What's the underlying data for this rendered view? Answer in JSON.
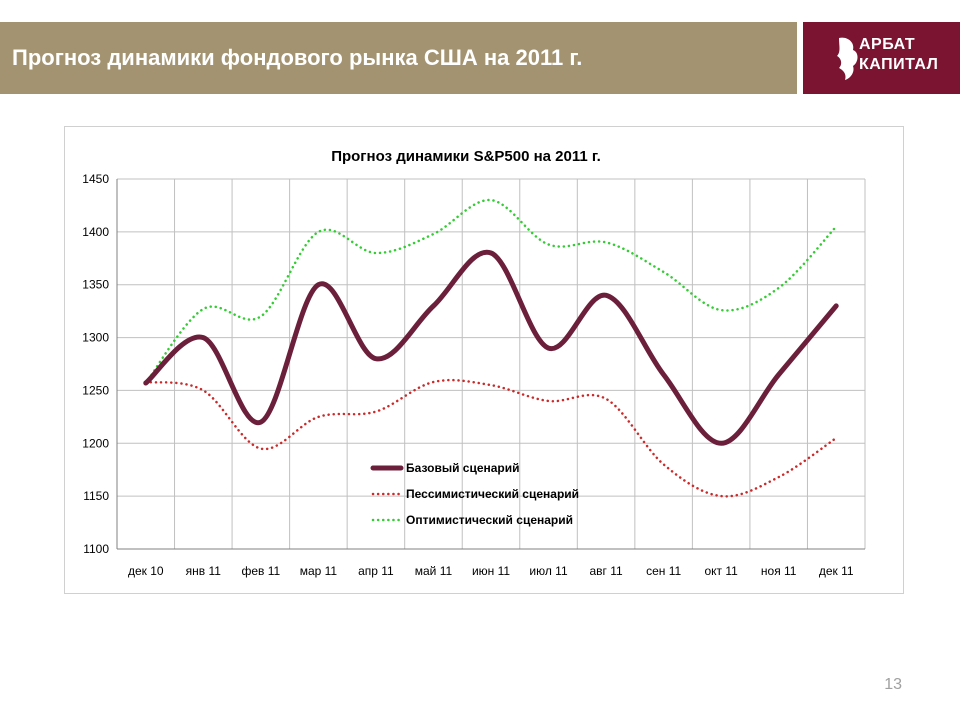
{
  "header": {
    "title": "Прогноз динамики фондового рынка США на 2011 г.",
    "background_color": "#a39370"
  },
  "logo": {
    "line1": "АРБАТ",
    "line2": "КАПИТАЛ",
    "background_color": "#7a1430",
    "icon": "lion-emblem-icon"
  },
  "chart_data": {
    "type": "line",
    "title": "Прогноз динамики S&P500 на 2011 г.",
    "xlabel": "",
    "ylabel": "",
    "categories": [
      "дек 10",
      "янв 11",
      "фев 11",
      "мар 11",
      "апр 11",
      "май 11",
      "июн 11",
      "июл 11",
      "авг 11",
      "сен 11",
      "окт 11",
      "ноя 11",
      "дек 11"
    ],
    "ylim": [
      1100,
      1450
    ],
    "yticks": [
      1100,
      1150,
      1200,
      1250,
      1300,
      1350,
      1400,
      1450
    ],
    "grid": true,
    "legend_position": "bottom-center",
    "series": [
      {
        "name": "Базовый сценарий",
        "color": "#6b1f3a",
        "style": "solid",
        "values": [
          1257,
          1300,
          1220,
          1350,
          1280,
          1330,
          1380,
          1290,
          1340,
          1265,
          1200,
          1265,
          1330
        ]
      },
      {
        "name": "Пессимистический сценарий",
        "color": "#cc2a2a",
        "style": "dotted",
        "values": [
          1258,
          1250,
          1195,
          1225,
          1230,
          1258,
          1255,
          1240,
          1242,
          1180,
          1150,
          1168,
          1205
        ]
      },
      {
        "name": "Оптимистический сценарий",
        "color": "#33cc33",
        "style": "dotted",
        "values": [
          1257,
          1327,
          1320,
          1400,
          1380,
          1398,
          1430,
          1388,
          1390,
          1362,
          1326,
          1347,
          1405
        ]
      }
    ]
  },
  "footer": {
    "page_number": "13"
  }
}
